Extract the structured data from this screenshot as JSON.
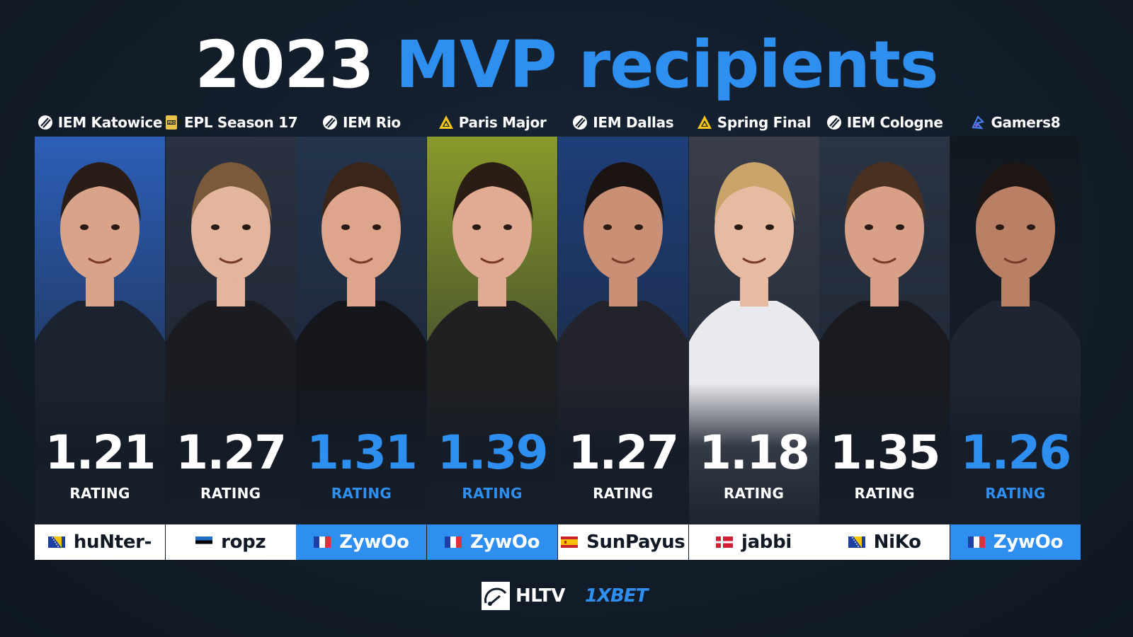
{
  "title": {
    "year": "2023",
    "highlight": "MVP recipients"
  },
  "rating_label": "RATING",
  "colors": {
    "accent": "#2f8ff0",
    "background": "#121d2a",
    "name_bar": "#ffffff",
    "text_dark": "#111a24"
  },
  "recipients": [
    {
      "event": "IEM Katowice",
      "event_icon": "iem-logo-icon",
      "rating": "1.21",
      "label": "RATING",
      "player": "huNter-",
      "flag": "bosnia-flag-icon",
      "highlighted": false,
      "photo_bg": "#2c5fb8",
      "jersey": "#1c2330"
    },
    {
      "event": "EPL Season 17",
      "event_icon": "esl-pro-league-icon",
      "rating": "1.27",
      "label": "RATING",
      "player": "ropz",
      "flag": "estonia-flag-icon",
      "highlighted": false,
      "photo_bg": "#2a3140",
      "jersey": "#1a1c22"
    },
    {
      "event": "IEM Rio",
      "event_icon": "iem-logo-icon",
      "rating": "1.31",
      "label": "RATING",
      "player": "ZywOo",
      "flag": "france-flag-icon",
      "highlighted": true,
      "photo_bg": "#23344d",
      "jersey": "#15171c"
    },
    {
      "event": "Paris Major",
      "event_icon": "blast-logo-icon",
      "rating": "1.39",
      "label": "RATING",
      "player": "ZywOo",
      "flag": "france-flag-icon",
      "highlighted": true,
      "photo_bg": "#8a9a2a",
      "jersey": "#202022"
    },
    {
      "event": "IEM Dallas",
      "event_icon": "iem-logo-icon",
      "rating": "1.27",
      "label": "RATING",
      "player": "SunPayus",
      "flag": "spain-flag-icon",
      "highlighted": false,
      "photo_bg": "#1e3f7a",
      "jersey": "#22232b"
    },
    {
      "event": "Spring Final",
      "event_icon": "blast-logo-icon",
      "rating": "1.18",
      "label": "RATING",
      "player": "jabbi",
      "flag": "denmark-flag-icon",
      "highlighted": false,
      "photo_bg": "#3a3e4a",
      "jersey": "#e9e9ee"
    },
    {
      "event": "IEM Cologne",
      "event_icon": "iem-logo-icon",
      "rating": "1.35",
      "label": "RATING",
      "player": "NiKo",
      "flag": "bosnia-flag-icon",
      "highlighted": false,
      "photo_bg": "#2b3442",
      "jersey": "#1a1b20"
    },
    {
      "event": "Gamers8",
      "event_icon": "gamers8-logo-icon",
      "rating": "1.26",
      "label": "RATING",
      "player": "ZywOo",
      "flag": "france-flag-icon",
      "highlighted": true,
      "photo_bg": "#121820",
      "jersey": "#1f2533"
    }
  ],
  "footer": {
    "brand": "HLTV",
    "sponsor": "1XBET",
    "brand_icon": "hltv-logo-icon"
  }
}
